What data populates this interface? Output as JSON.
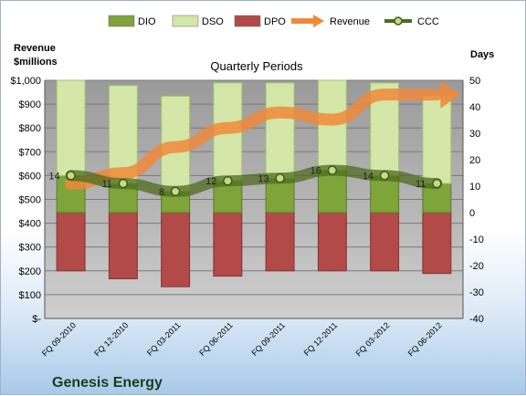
{
  "chart_data": {
    "type": "bar",
    "title": "Quarterly Periods",
    "company": "Genesis Energy",
    "left_axis_label": [
      "Revenue",
      "$millions"
    ],
    "right_axis_label": "Days",
    "left_ticks": [
      "$-",
      "$100",
      "$200",
      "$300",
      "$400",
      "$500",
      "$600",
      "$700",
      "$800",
      "$900",
      "$1,000"
    ],
    "right_ticks": [
      "-40",
      "-30",
      "-20",
      "-10",
      "0",
      "10",
      "20",
      "30",
      "40",
      "50"
    ],
    "ylim_left": [
      0,
      1000
    ],
    "ylim_right": [
      -40,
      50
    ],
    "categories": [
      "FQ 09-2010",
      "FQ 12-2010",
      "FQ 03-2011",
      "FQ 06-2011",
      "FQ 09-2011",
      "FQ 12-2011",
      "FQ 03-2012",
      "FQ 06-2012"
    ],
    "legend": [
      "DIO",
      "DSO",
      "DPO",
      "Revenue",
      "CCC"
    ],
    "series": [
      {
        "name": "DIO",
        "axis": "right",
        "values": [
          14,
          11,
          8,
          12,
          13,
          16,
          14,
          11
        ],
        "color": "#7fa43a"
      },
      {
        "name": "DSO",
        "axis": "right",
        "values": [
          36,
          37,
          36,
          37,
          36,
          34,
          35,
          33
        ],
        "color": "#d4e6a8"
      },
      {
        "name": "DPO",
        "axis": "right",
        "values": [
          -22,
          -25,
          -28,
          -24,
          -22,
          -22,
          -22,
          -23
        ],
        "color": "#b24a4a"
      },
      {
        "name": "Revenue",
        "axis": "left",
        "values": [
          565,
          610,
          720,
          800,
          865,
          835,
          940,
          940
        ],
        "color": "#f0883a"
      },
      {
        "name": "CCC",
        "axis": "right",
        "values": [
          14,
          11,
          8,
          12,
          13,
          16,
          14,
          11
        ],
        "color": "#6e8f2e"
      }
    ],
    "ccc_labels": [
      "14",
      "11",
      "8",
      "12",
      "13",
      "16",
      "14",
      "11"
    ],
    "grid": true
  }
}
